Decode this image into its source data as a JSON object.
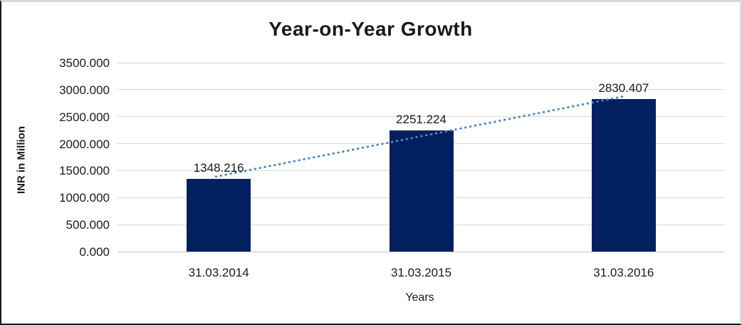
{
  "chart_data": {
    "type": "bar",
    "title": "Year-on-Year Growth",
    "xlabel": "Years",
    "ylabel": "INR in Million",
    "categories": [
      "31.03.2014",
      "31.03.2015",
      "31.03.2016"
    ],
    "values": [
      1348.216,
      2251.224,
      2830.407
    ],
    "data_labels": [
      "1348.216",
      "2251.224",
      "2830.407"
    ],
    "ylim": [
      0,
      3500
    ],
    "ytick_step": 500,
    "yticks": [
      "0.000",
      "500.000",
      "1000.000",
      "1500.000",
      "2000.000",
      "2500.000",
      "3000.000",
      "3500.000"
    ],
    "grid": true,
    "legend": "none",
    "bar_color": "#02205f",
    "gridline_color": "#d9d9d9",
    "trendline": {
      "type": "linear",
      "style": "dotted",
      "color": "#4a86c8"
    }
  }
}
